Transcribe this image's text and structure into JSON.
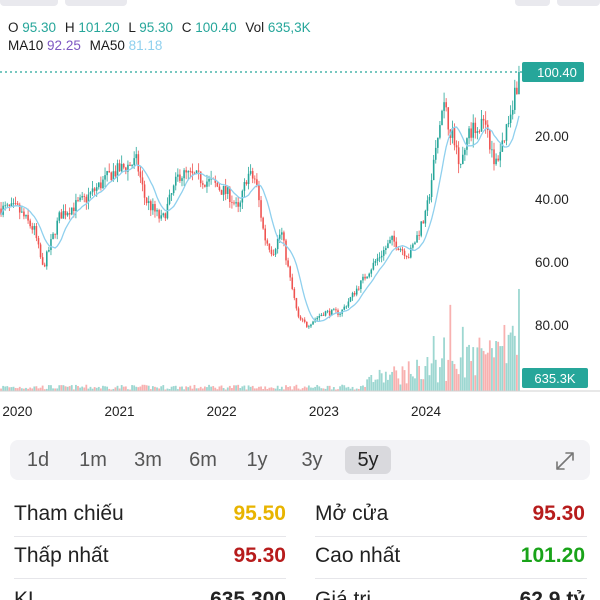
{
  "header": {
    "open_label": "O",
    "open_value": "95.30",
    "high_label": "H",
    "high_value": "101.20",
    "low_label": "L",
    "low_value": "95.30",
    "close_label": "C",
    "close_value": "100.40",
    "vol_label": "Vol",
    "vol_value": "635,3K",
    "ma10_label": "MA10",
    "ma10_value": "92.25",
    "ma50_label": "MA50",
    "ma50_value": "81.18"
  },
  "chart_data": {
    "type": "candlestick",
    "x_tick_labels": [
      "2020",
      "2021",
      "2022",
      "2023",
      "2024"
    ],
    "y_tick_labels": [
      "20.00",
      "40.00",
      "60.00",
      "80.00"
    ],
    "ylim": [
      0,
      102
    ],
    "last_price_label": "100.40",
    "last_volume_label": "635.3K",
    "price_path": [
      [
        "2020-01",
        57
      ],
      [
        "2020-03",
        50
      ],
      [
        "2020-04",
        38
      ],
      [
        "2020-06",
        55
      ],
      [
        "2020-09",
        60
      ],
      [
        "2020-12",
        68
      ],
      [
        "2021-03",
        72
      ],
      [
        "2021-04",
        60
      ],
      [
        "2021-06",
        53
      ],
      [
        "2021-08",
        68
      ],
      [
        "2021-10",
        67
      ],
      [
        "2021-12",
        65
      ],
      [
        "2022-02",
        61
      ],
      [
        "2022-03",
        56
      ],
      [
        "2022-04",
        68
      ],
      [
        "2022-05",
        66
      ],
      [
        "2022-06",
        48
      ],
      [
        "2022-07",
        43
      ],
      [
        "2022-08",
        50
      ],
      [
        "2022-09",
        35
      ],
      [
        "2022-10",
        22
      ],
      [
        "2022-11",
        20
      ],
      [
        "2023-01",
        24
      ],
      [
        "2023-03",
        24
      ],
      [
        "2023-05",
        32
      ],
      [
        "2023-07",
        40
      ],
      [
        "2023-09",
        47
      ],
      [
        "2023-11",
        42
      ],
      [
        "2024-01",
        55
      ],
      [
        "2024-03",
        90
      ],
      [
        "2024-05",
        72
      ],
      [
        "2024-06",
        80
      ],
      [
        "2024-08",
        86
      ],
      [
        "2024-09",
        70
      ],
      [
        "2024-10",
        78
      ],
      [
        "2024-12",
        100.4
      ]
    ],
    "colors": {
      "up": "#26a69a",
      "down": "#ef5350",
      "ma10": "#7e57c2",
      "ma50": "#8fd0ee",
      "price_line": "#26a69a",
      "axis_text": "#222222"
    }
  },
  "periods": [
    {
      "label": "1d"
    },
    {
      "label": "1m"
    },
    {
      "label": "3m"
    },
    {
      "label": "6m"
    },
    {
      "label": "1y"
    },
    {
      "label": "3y"
    },
    {
      "label": "5y"
    }
  ],
  "active_period": "5y",
  "stats": {
    "reference_label": "Tham chiếu",
    "reference_value": "95.50",
    "open_label": "Mở cửa",
    "open_value": "95.30",
    "low_label": "Thấp nhất",
    "low_value": "95.30",
    "high_label": "Cao nhất",
    "high_value": "101.20",
    "volume_label": "KL",
    "volume_value": "635,300",
    "turnover_label": "Giá trị",
    "turnover_value": "62,9 tỷ"
  },
  "colors": {
    "reference": "#e8b400",
    "down": "#b71c1c",
    "up": "#19a319"
  },
  "icons": {
    "expand": "expand-icon"
  }
}
